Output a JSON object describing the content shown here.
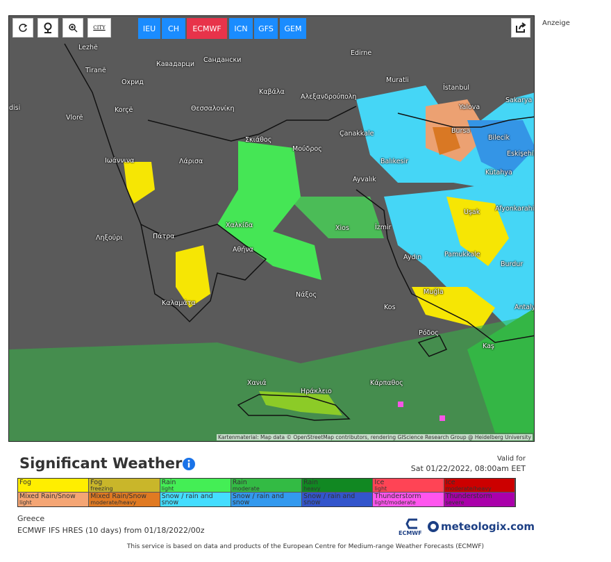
{
  "toolbar": {
    "city_button": "CITY",
    "models": [
      "IEU",
      "CH",
      "ECMWF",
      "ICN",
      "GFS",
      "GEM"
    ],
    "active_model": "ECMWF"
  },
  "ad_label": "Anzeige",
  "map": {
    "labels": [
      "Lezhë",
      "Tiranë",
      "Охрид",
      "Korçë",
      "Vlorë",
      "disi",
      "Кавадарци",
      "Сандански",
      "Edirne",
      "Muratli",
      "İstanbul",
      "Καβάλα",
      "Αλεξανδρούπολη",
      "Θεσσαλονίκη",
      "Yalova",
      "Sakarya",
      "Bursa",
      "Bilecik",
      "Çanakkale",
      "Eskişehir",
      "Σκιάθος",
      "Μούδρος",
      "Balıkesir",
      "Ιωάννινα",
      "Λάρισα",
      "Kütahya",
      "Ayvalık",
      "Afyonkarahisar",
      "Uşak",
      "Χαλκίδα",
      "Xios",
      "İzmir",
      "Ληξούρι",
      "Πάτρα",
      "Αθήνα",
      "Pamukkale",
      "Aydın",
      "Burdur",
      "Muğla",
      "Νάξος",
      "Καλαμάτα",
      "Kos",
      "Antalya",
      "Ρόδος",
      "Kaş",
      "Χανιά",
      "Ηράκλειο",
      "Κάρπαθος"
    ],
    "attribution": "Kartenmaterial: Map data © OpenStreetMap contributors, rendering GIScience Research Group @ Heidelberg University"
  },
  "header": {
    "title": "Significant Weather",
    "valid_for_label": "Valid for",
    "valid_time": "Sat 01/22/2022, 08:00am EET"
  },
  "legend": [
    {
      "name": "Fog",
      "color": "#ffee00"
    },
    {
      "name": "Fog",
      "sub": "freezing",
      "color": "#c9b62a"
    },
    {
      "name": "Rain",
      "sub": "light",
      "color": "#44ee55"
    },
    {
      "name": "Rain",
      "sub": "moderate",
      "color": "#33bb44"
    },
    {
      "name": "Rain",
      "sub": "heavy",
      "color": "#118822"
    },
    {
      "name": "Ice",
      "sub": "light",
      "color": "#ff4455"
    },
    {
      "name": "Ice",
      "sub": "moderate/heavy",
      "color": "#cc0000"
    },
    {
      "name": "Mixed Rain/Snow",
      "sub": "light",
      "color": "#f4a574"
    },
    {
      "name": "Mixed Rain/Snow",
      "sub": "moderate/heavy",
      "color": "#e07a22"
    },
    {
      "name": "Snow / rain and snow",
      "sub": "light",
      "color": "#44ddff"
    },
    {
      "name": "Snow / rain and snow",
      "sub": "moderate",
      "color": "#3399ee"
    },
    {
      "name": "Snow / rain and snow",
      "sub": "heavy",
      "color": "#3355cc"
    },
    {
      "name": "Thunderstorm",
      "sub": "light/moderate",
      "color": "#ff55ee"
    },
    {
      "name": "Thunderstorm",
      "sub": "severe",
      "color": "#aa00aa"
    }
  ],
  "info": {
    "region": "Greece",
    "model_run": "ECMWF IFS HRES (10 days) from 01/18/2022/00z",
    "ecmwf_logo": "ECMWF",
    "brand": "meteologix.com",
    "footer": "This service is based on data and products of the European Centre for Medium-range Weather Forecasts (ECMWF)"
  }
}
